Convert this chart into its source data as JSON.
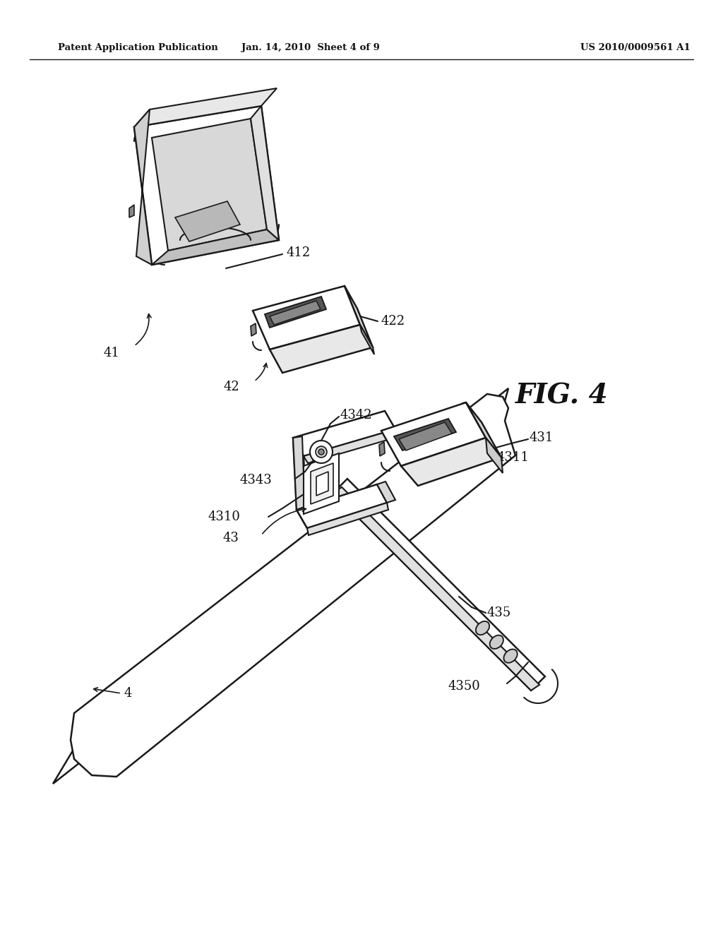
{
  "background_color": "#ffffff",
  "header_left": "Patent Application Publication",
  "header_center": "Jan. 14, 2010  Sheet 4 of 9",
  "header_right": "US 2010/0009561 A1",
  "figure_label": "FIG. 4",
  "line_color": "#1a1a1a",
  "text_color": "#111111",
  "lw": 1.5
}
